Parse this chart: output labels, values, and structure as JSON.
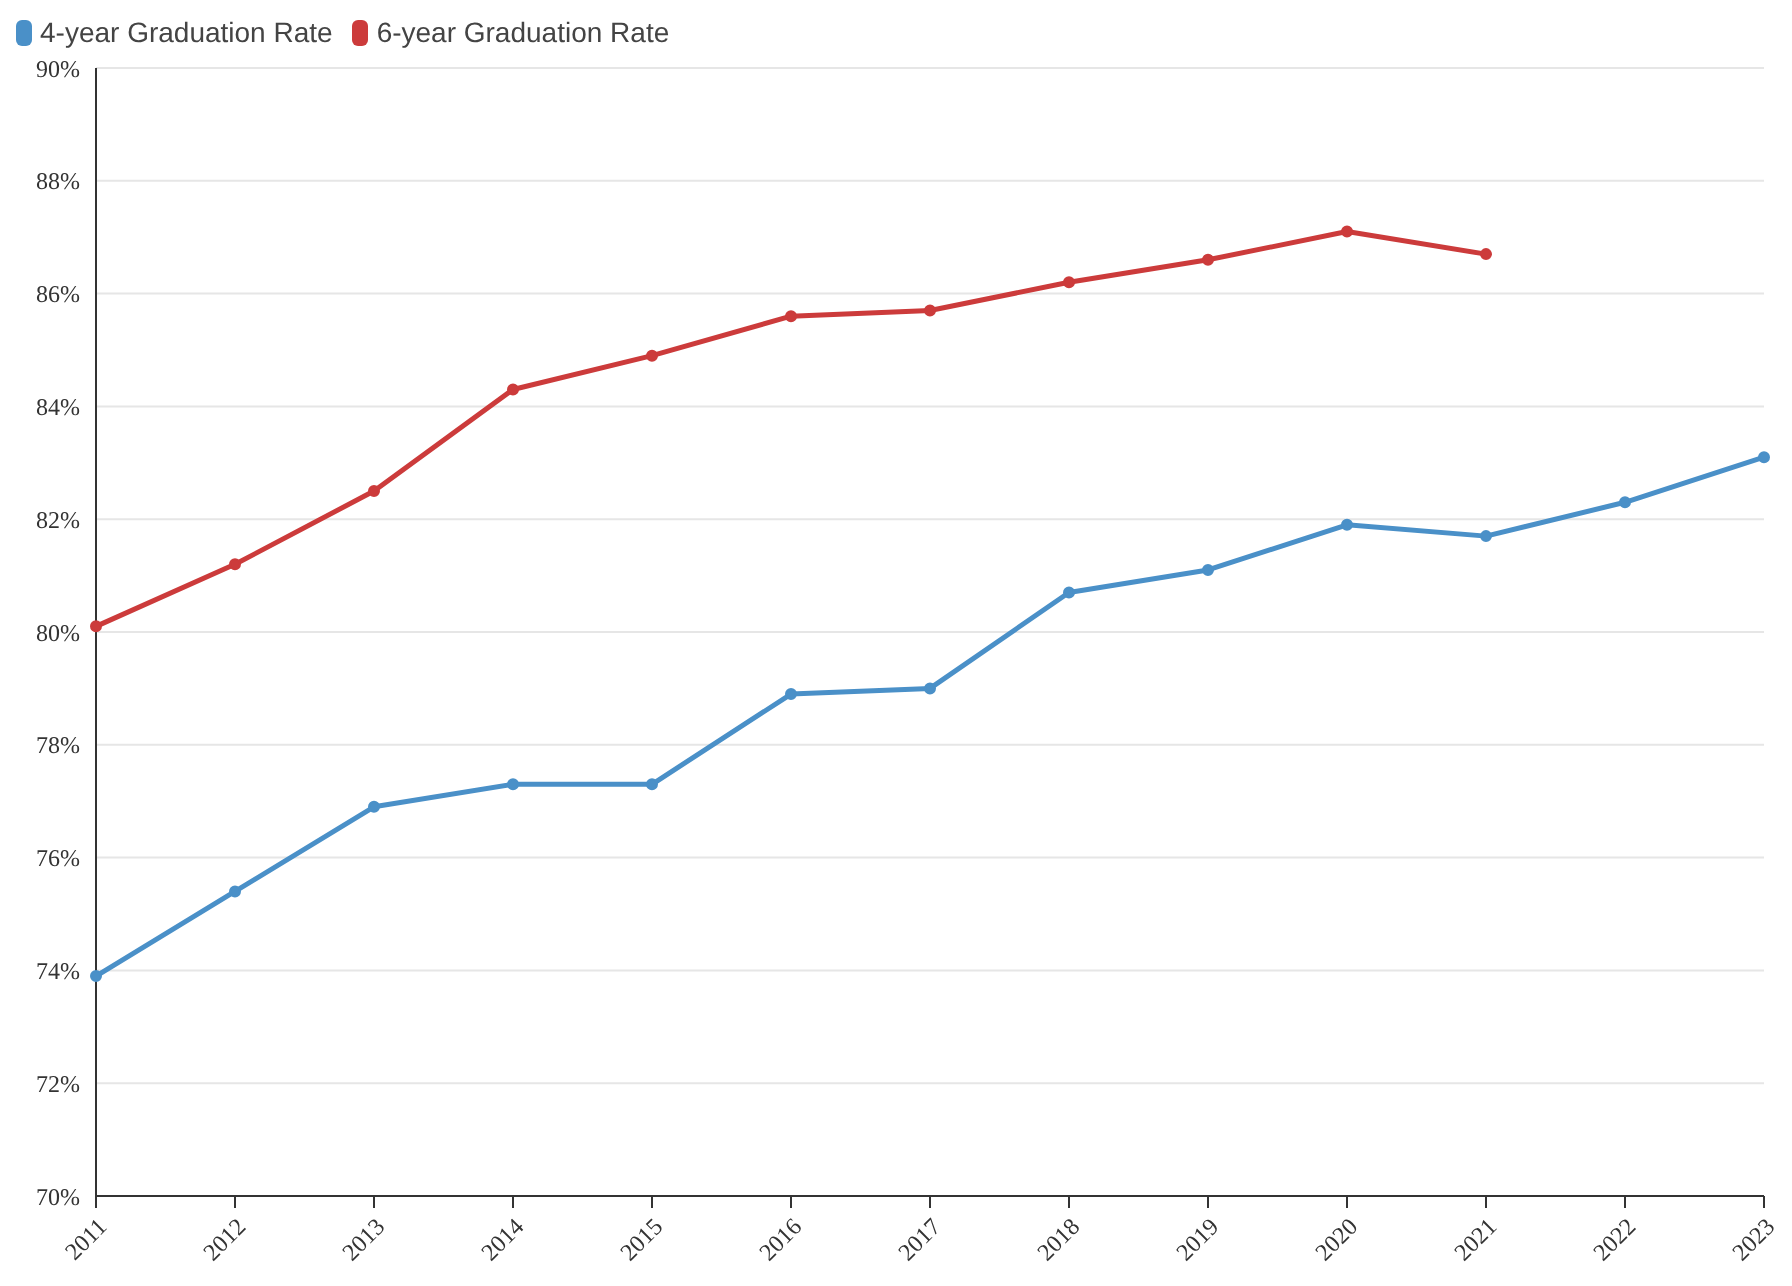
{
  "chart_data": {
    "type": "line",
    "categories": [
      "2011",
      "2012",
      "2013",
      "2014",
      "2015",
      "2016",
      "2017",
      "2018",
      "2019",
      "2020",
      "2021",
      "2022",
      "2023"
    ],
    "series": [
      {
        "name": "4-year Graduation Rate",
        "color": "#4a90c8",
        "values": [
          73.9,
          75.4,
          76.9,
          77.3,
          77.3,
          78.9,
          79.0,
          80.7,
          81.1,
          81.9,
          81.7,
          82.3,
          83.1
        ]
      },
      {
        "name": "6-year Graduation Rate",
        "color": "#cc3b3b",
        "values": [
          80.1,
          81.2,
          82.5,
          84.3,
          84.9,
          85.6,
          85.7,
          86.2,
          86.6,
          87.1,
          86.7,
          null,
          null
        ]
      }
    ],
    "ylim": [
      70,
      90
    ],
    "yticks": [
      {
        "value": 70,
        "label": "70%"
      },
      {
        "value": 72,
        "label": "72%"
      },
      {
        "value": 74,
        "label": "74%"
      },
      {
        "value": 76,
        "label": "76%"
      },
      {
        "value": 78,
        "label": "78%"
      },
      {
        "value": 80,
        "label": "80%"
      },
      {
        "value": 82,
        "label": "82%"
      },
      {
        "value": 84,
        "label": "84%"
      },
      {
        "value": 86,
        "label": "86%"
      },
      {
        "value": 88,
        "label": "88%"
      },
      {
        "value": 90,
        "label": "90%"
      }
    ],
    "grid": "y",
    "legend": "top left",
    "marker": "circle",
    "line_style": "solid"
  }
}
